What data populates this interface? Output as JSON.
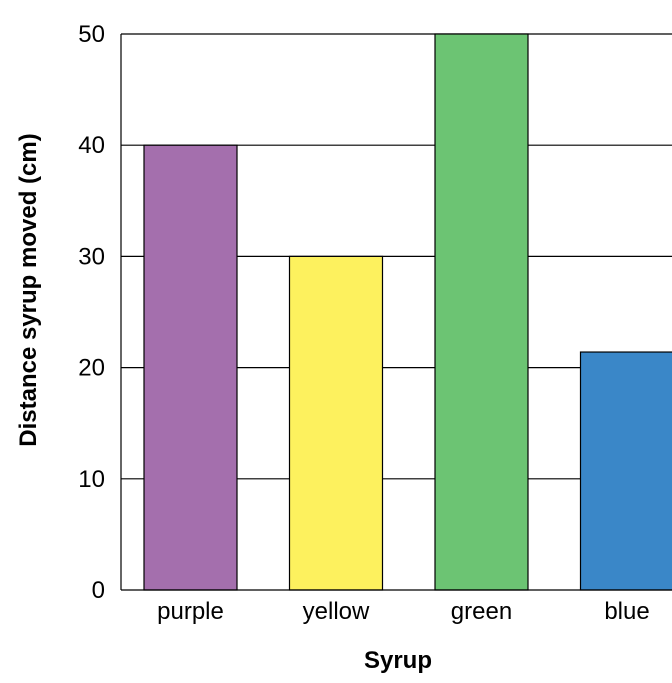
{
  "chart_data": {
    "type": "bar",
    "title": "",
    "xlabel": "Syrup",
    "ylabel": "Distance syrup moved (cm)",
    "categories": [
      "purple",
      "yellow",
      "green",
      "blue"
    ],
    "values": [
      40,
      30,
      50,
      21.4
    ],
    "colors": [
      "#a46fad",
      "#fdf15e",
      "#6cc473",
      "#3a87c8"
    ],
    "ylim": [
      0,
      50
    ],
    "yticks": [
      0,
      10,
      20,
      30,
      40,
      50
    ],
    "grid": true
  }
}
